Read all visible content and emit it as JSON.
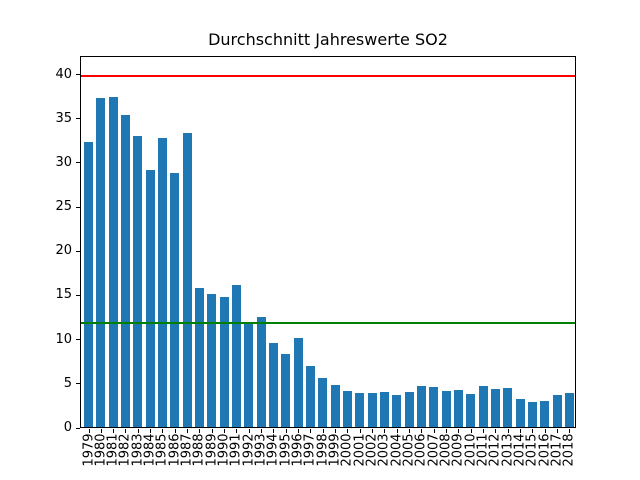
{
  "window": {
    "background": "#ffffff"
  },
  "colors": {
    "bar": "#1f77b4",
    "upper_limit_line": "#ff0000",
    "lower_limit_line": "#008000",
    "axis": "#000000"
  },
  "chart_data": {
    "type": "bar",
    "title": "Durchschnitt Jahreswerte SO2",
    "xlabel": "",
    "ylabel": "",
    "grid": false,
    "legend": null,
    "ylim": [
      0,
      42.1
    ],
    "yticks": [
      0,
      5,
      10,
      15,
      20,
      25,
      30,
      35,
      40
    ],
    "categories": [
      "1979",
      "1980",
      "1981",
      "1982",
      "1983",
      "1984",
      "1985",
      "1986",
      "1987",
      "1988",
      "1989",
      "1990",
      "1991",
      "1992",
      "1993",
      "1994",
      "1995",
      "1996",
      "1997",
      "1998",
      "1999",
      "2000",
      "2001",
      "2002",
      "2003",
      "2004",
      "2005",
      "2006",
      "2007",
      "2008",
      "2009",
      "2010",
      "2011",
      "2012",
      "2013",
      "2014",
      "2015",
      "2016",
      "2017",
      "2018"
    ],
    "values": [
      32.3,
      37.2,
      37.4,
      35.3,
      32.9,
      29.1,
      32.7,
      28.7,
      33.3,
      15.7,
      15.1,
      14.7,
      16.1,
      11.9,
      12.5,
      9.5,
      8.3,
      10.1,
      6.9,
      5.5,
      4.8,
      4.1,
      3.9,
      3.8,
      4.0,
      3.6,
      4.0,
      4.6,
      4.5,
      4.1,
      4.2,
      3.7,
      4.7,
      4.3,
      4.4,
      3.2,
      2.8,
      2.9,
      3.6,
      3.9
    ],
    "reference_lines": [
      {
        "name": "upper-limit-line",
        "value": 40,
        "color": "#ff0000"
      },
      {
        "name": "lower-limit-line",
        "value": 12,
        "color": "#008000"
      }
    ]
  }
}
